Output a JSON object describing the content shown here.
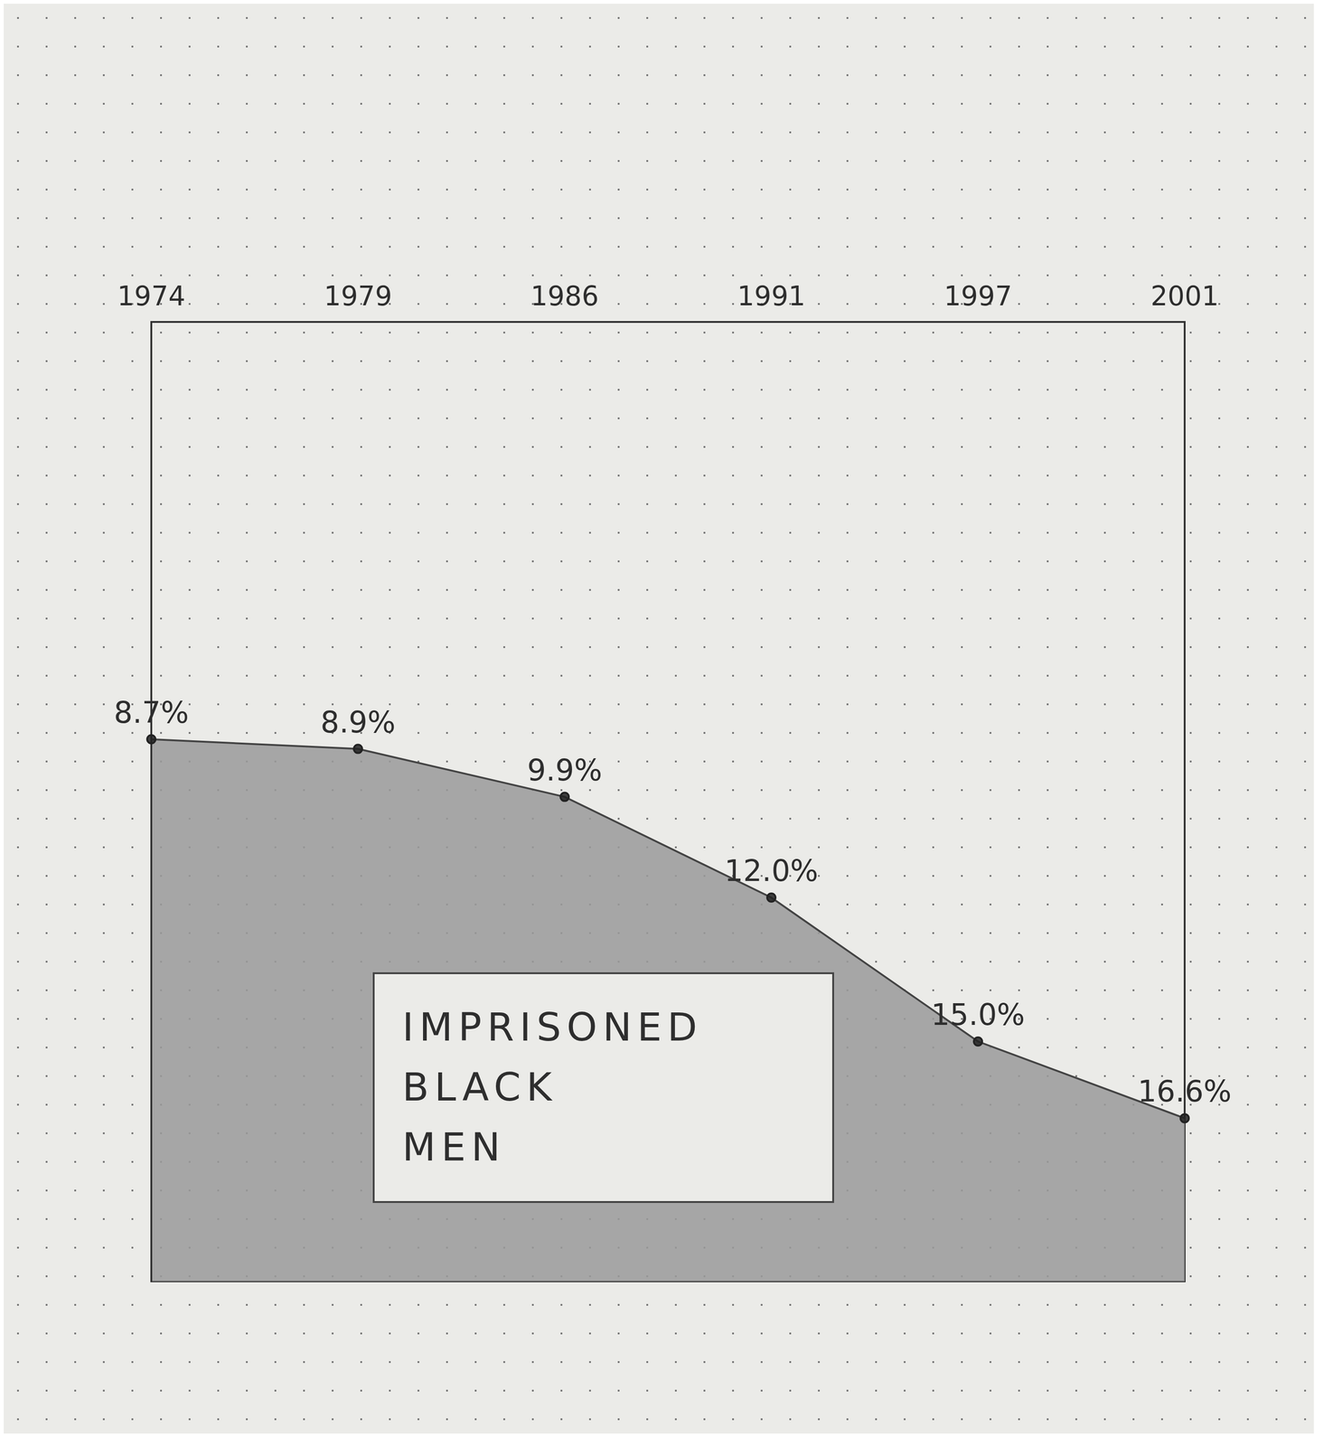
{
  "chart_data": {
    "type": "area",
    "categories": [
      "1974",
      "1979",
      "1986",
      "1991",
      "1997",
      "2001"
    ],
    "values": [
      8.7,
      8.9,
      9.9,
      12.0,
      15.0,
      16.6
    ],
    "value_labels": [
      "8.7%",
      "8.9%",
      "9.9%",
      "12.0%",
      "15.0%",
      "16.6%"
    ],
    "data_labels": true,
    "annotation": "IMPRISONED BLACK MEN",
    "color": "#9a9a9a",
    "ylim": [
      20,
      0
    ],
    "tick_labels": "x"
  }
}
